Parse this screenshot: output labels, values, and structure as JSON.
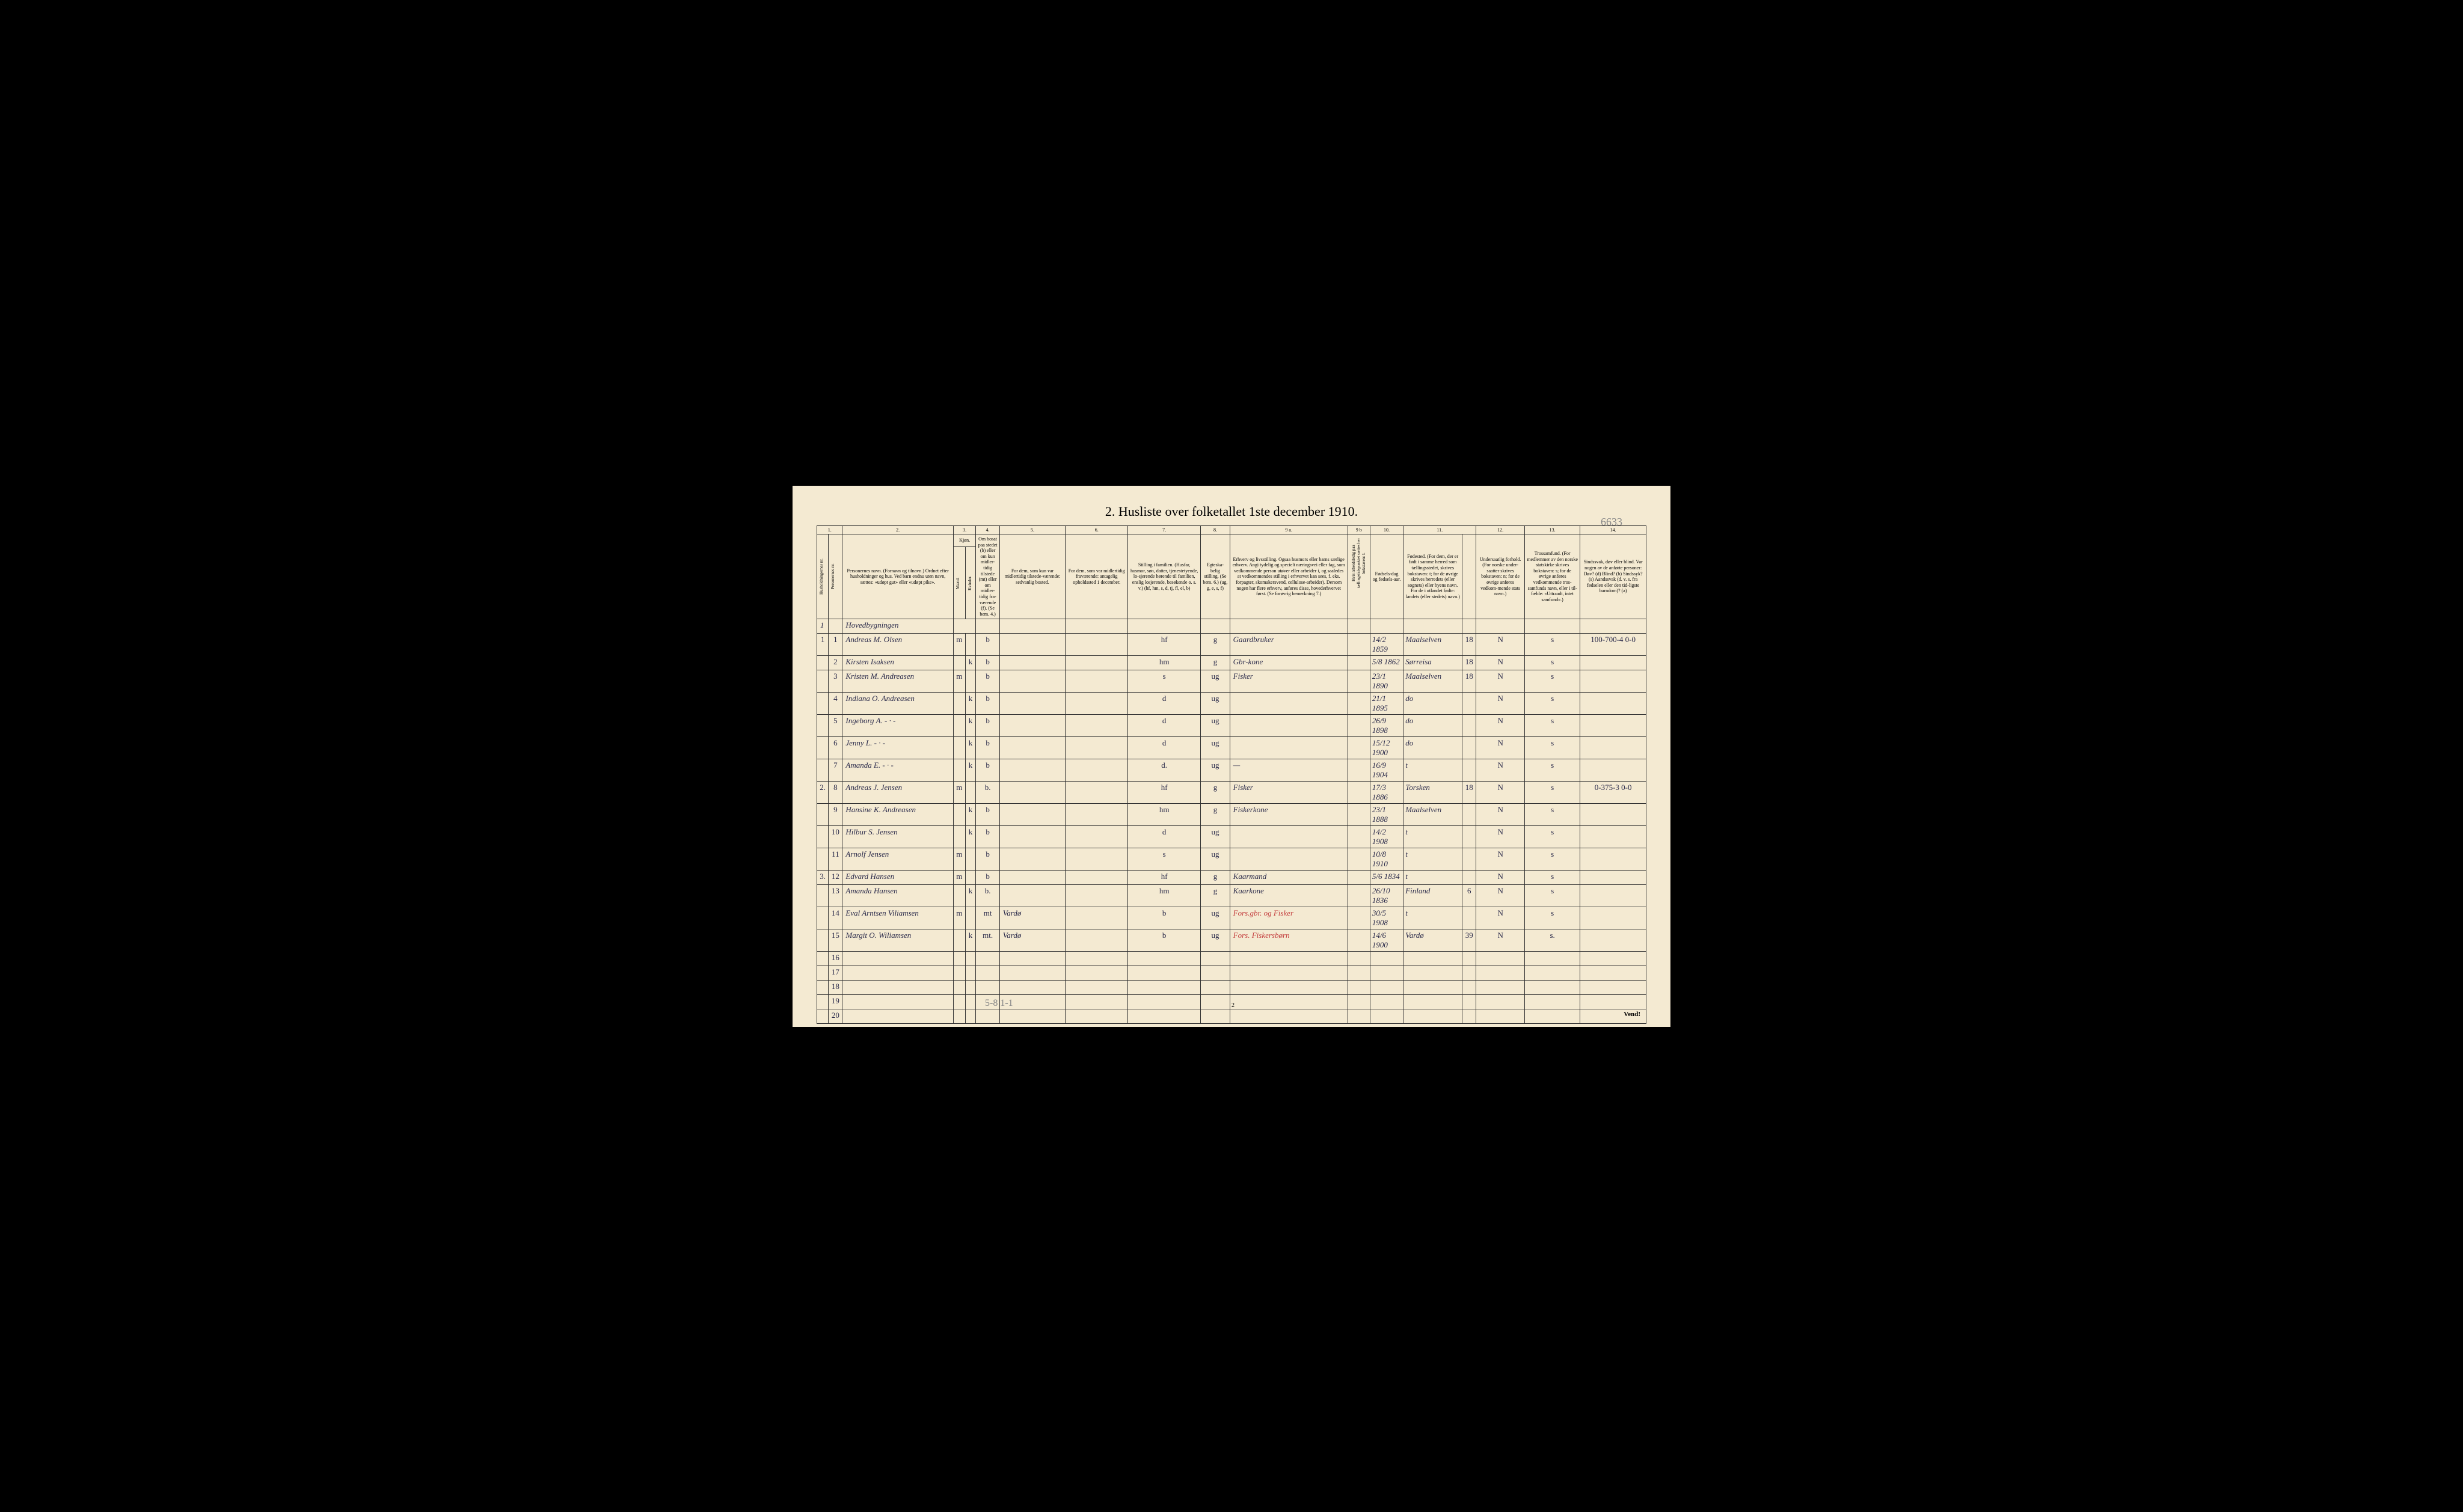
{
  "title": "2. Husliste over folketallet 1ste december 1910.",
  "page_annotation": "6633",
  "bottom_annotation": "5-8   1-1",
  "bottom_page": "2",
  "vend": "Vend!",
  "colors": {
    "paper": "#f4ead2",
    "ink": "#2a2a4a",
    "red_ink": "#c44040",
    "pencil": "#888888"
  },
  "column_numbers": [
    "1.",
    "2.",
    "3.",
    "4.",
    "5.",
    "6.",
    "7.",
    "8.",
    "9 a.",
    "9 b",
    "10.",
    "11.",
    "12.",
    "13.",
    "14."
  ],
  "headers": {
    "col1a": "Husholdningernes nr.",
    "col1b": "Personernes nr.",
    "col2": "Personernes navn.\n(Fornavn og tilnavn.)\nOrdnet efter husholdninger og hus.\nVed barn endnu uten navn, sættes: «udøpt gut» eller «udøpt pike».",
    "col3": "Kjøn.",
    "col3m": "Mænd.",
    "col3k": "Kvinder.",
    "col3mk": "m. k.",
    "col4": "Om bosat paa stedet (b) eller om kun midler-tidig tilstede (mt) eller om midler-tidig fra-værende (f).\n(Se bem. 4.)",
    "col5": "For dem, som kun var midlertidig tilstede-værende:\nsedvanlig bosted.",
    "col6": "For dem, som var midlertidig fraværende:\nantagelig opholdssted 1 december.",
    "col7": "Stilling i familien.\n(Husfar, husmor, søn, datter, tjenestetyende, lo-sjerende hørende til familien, enslig losjerende, besøkende o. s. v.)\n(hf, hm, s, d, tj, fl, el, b)",
    "col8": "Egteska-belig stilling.\n(Se bem. 6.)\n(ug, g, e, s, f)",
    "col9a": "Erhverv og livsstilling.\nOgsaa husmors eller barns særlige erhverv. Angi tydelig og specielt næringsvei eller fag, som vedkommende person utøver eller arbeider i, og saaledes at vedkommendes stilling i erhvervet kan sees, f. eks. forpagter, skomakersvend, cellulose-arbeider). Dersom nogen har flere erhverv, anføres disse, hovederhvervet først.\n(Se forøvrig bemerkning 7.)",
    "col9b": "Hvis arbeidsledig paa tællingstidspunktet sættes her bokstaven: l.",
    "col10": "Fødsels-dag og fødsels-aar.",
    "col11": "Fødested.\n(For dem, der er født i samme herred som tællingsstedet, skrives bokstaven: t; for de øvrige skrives herredets (eller sognets) eller byens navn. For de i utlandet fødte: landets (eller stedets) navn.)",
    "col11ex": "",
    "col12": "Undersaatlig forhold.\n(For norske under-saatter skrives bokstaven: n; for de øvrige anføres vedkom-mende stats navn.)",
    "col13": "Trossamfund.\n(For medlemmer av den norske statskirke skrives bokstaven: s; for de øvrige anføres vedkommende tros-samfunds navn, eller i til-fælde: «Uttraadt, intet samfund».)",
    "col14": "Sindssvak, døv eller blind.\nVar nogen av de anførte personer:\nDøv? (d)\nBlind? (b)\nSindssyk? (s)\nAandssvak (d. v. s. fra fødselen eller den tid-ligste barndom)? (a)"
  },
  "hovedbygningen": "Hovedbygningen",
  "rows": [
    {
      "hh": "1",
      "pn": "1",
      "name": "Andreas M. Olsen",
      "sex": "m",
      "status": "b",
      "col5": "",
      "col6": "",
      "col7": "hf",
      "col8": "g",
      "col9a": "Gaardbruker",
      "col10": "14/2 1859",
      "col11": "Maalselven",
      "col11ex": "18",
      "col12": "N",
      "col13": "s",
      "col14": "100-700-4  0-0"
    },
    {
      "hh": "",
      "pn": "2",
      "name": "Kirsten Isaksen",
      "sex": "k",
      "status": "b",
      "col5": "",
      "col6": "",
      "col7": "hm",
      "col8": "g",
      "col9a": "Gbr-kone",
      "col10": "5/8 1862",
      "col11": "Sørreisa",
      "col11ex": "18",
      "col12": "N",
      "col13": "s",
      "col14": ""
    },
    {
      "hh": "",
      "pn": "3",
      "name": "Kristen M. Andreasen",
      "sex": "m",
      "status": "b",
      "col5": "",
      "col6": "",
      "col7": "s",
      "col8": "ug",
      "col9a": "Fisker",
      "col10": "23/1 1890",
      "col11": "Maalselven",
      "col11ex": "18",
      "col12": "N",
      "col13": "s",
      "col14": ""
    },
    {
      "hh": "",
      "pn": "4",
      "name": "Indiana O. Andreasen",
      "sex": "k",
      "status": "b",
      "col5": "",
      "col6": "",
      "col7": "d",
      "col8": "ug",
      "col9a": "",
      "col10": "21/1 1895",
      "col11": "do",
      "col11ex": "",
      "col12": "N",
      "col13": "s",
      "col14": ""
    },
    {
      "hh": "",
      "pn": "5",
      "name": "Ingeborg A.  - · -",
      "sex": "k",
      "status": "b",
      "col5": "",
      "col6": "",
      "col7": "d",
      "col8": "ug",
      "col9a": "",
      "col10": "26/9 1898",
      "col11": "do",
      "col11ex": "",
      "col12": "N",
      "col13": "s",
      "col14": ""
    },
    {
      "hh": "",
      "pn": "6",
      "name": "Jenny L.  - · -",
      "sex": "k",
      "status": "b",
      "col5": "",
      "col6": "",
      "col7": "d",
      "col8": "ug",
      "col9a": "",
      "col10": "15/12 1900",
      "col11": "do",
      "col11ex": "",
      "col12": "N",
      "col13": "s",
      "col14": ""
    },
    {
      "hh": "",
      "pn": "7",
      "name": "Amanda E.  - · -",
      "sex": "k",
      "status": "b",
      "col5": "",
      "col6": "",
      "col7": "d.",
      "col8": "ug",
      "col9a": "—",
      "col10": "16/9 1904",
      "col11": "t",
      "col11ex": "",
      "col12": "N",
      "col13": "s",
      "col14": ""
    },
    {
      "hh": "2.",
      "pn": "8",
      "name": "Andreas J. Jensen",
      "sex": "m",
      "status": "b.",
      "col5": "",
      "col6": "",
      "col7": "hf",
      "col8": "g",
      "col9a": "Fisker",
      "col10": "17/3 1886",
      "col11": "Torsken",
      "col11ex": "18",
      "col12": "N",
      "col13": "s",
      "col14": "0-375-3  0-0"
    },
    {
      "hh": "",
      "pn": "9",
      "name": "Hansine K. Andreasen",
      "sex": "k",
      "status": "b",
      "col5": "",
      "col6": "",
      "col7": "hm",
      "col8": "g",
      "col9a": "Fiskerkone",
      "col10": "23/1 1888",
      "col11": "Maalselven",
      "col11ex": "",
      "col12": "N",
      "col13": "s",
      "col14": ""
    },
    {
      "hh": "",
      "pn": "10",
      "name": "Hilbur S. Jensen",
      "sex": "k",
      "status": "b",
      "col5": "",
      "col6": "",
      "col7": "d",
      "col8": "ug",
      "col9a": "",
      "col10": "14/2 1908",
      "col11": "t",
      "col11ex": "",
      "col12": "N",
      "col13": "s",
      "col14": ""
    },
    {
      "hh": "",
      "pn": "11",
      "name": "Arnolf Jensen",
      "sex": "m",
      "status": "b",
      "col5": "",
      "col6": "",
      "col7": "s",
      "col8": "ug",
      "col9a": "",
      "col10": "10/8 1910",
      "col11": "t",
      "col11ex": "",
      "col12": "N",
      "col13": "s",
      "col14": ""
    },
    {
      "hh": "3.",
      "pn": "12",
      "name": "Edvard Hansen",
      "sex": "m",
      "status": "b",
      "col5": "",
      "col6": "",
      "col7": "hf",
      "col8": "g",
      "col9a": "Kaarmand",
      "col10": "5/6 1834",
      "col11": "t",
      "col11ex": "",
      "col12": "N",
      "col13": "s",
      "col14": ""
    },
    {
      "hh": "",
      "pn": "13",
      "name": "Amanda Hansen",
      "sex": "k",
      "status": "b.",
      "col5": "",
      "col6": "",
      "col7": "hm",
      "col8": "g",
      "col9a": "Kaarkone",
      "col10": "26/10 1836",
      "col11": "Finland",
      "col11ex": "6",
      "col12": "N",
      "col13": "s",
      "col14": ""
    },
    {
      "hh": "",
      "pn": "14",
      "name": "Eval Arntsen Viliamsen",
      "sex": "m",
      "status": "mt",
      "col5": "Vardø",
      "col6": "",
      "col7": "b",
      "col8": "ug",
      "col9a": "Fors.gbr. og Fisker",
      "col9a_red": true,
      "col10": "30/5 1908",
      "col11": "t",
      "col11ex": "",
      "col12": "N",
      "col13": "s",
      "col14": ""
    },
    {
      "hh": "",
      "pn": "15",
      "name": "Margit O. Wiliamsen",
      "sex": "k",
      "status": "mt.",
      "col5": "Vardø",
      "col6": "",
      "col7": "b",
      "col8": "ug",
      "col9a": "Fors. Fiskersbørn",
      "col9a_red": true,
      "col10": "14/6 1900",
      "col11": "Vardø",
      "col11ex": "39",
      "col12": "N",
      "col13": "s.",
      "col14": ""
    }
  ],
  "empty_rows": [
    "16",
    "17",
    "18",
    "19",
    "20"
  ]
}
